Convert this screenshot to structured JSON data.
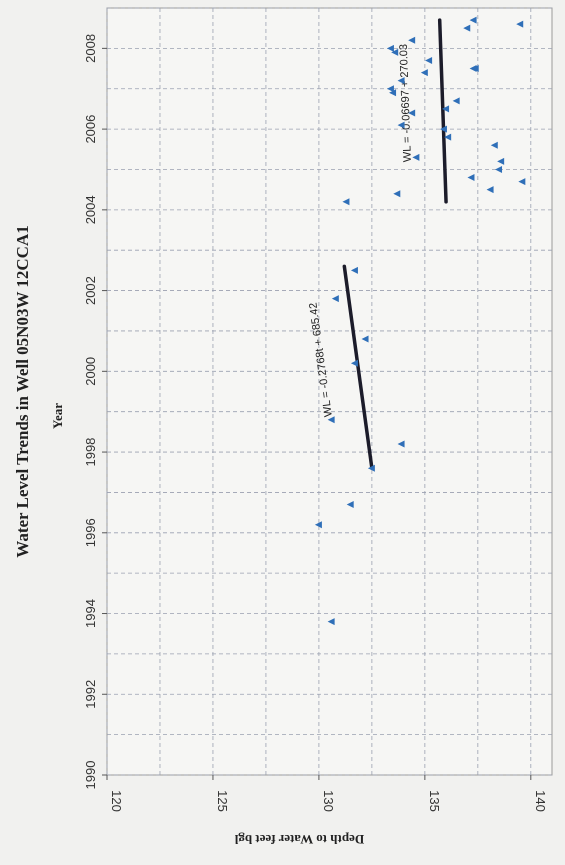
{
  "chart_data": {
    "type": "scatter",
    "title": "Water Level Trends in Well 05N03W 12CCA1",
    "xlabel": "Year",
    "ylabel": "Depth to Water feet bgl",
    "xlim": [
      1990,
      2009
    ],
    "ylim": [
      120,
      141
    ],
    "x_ticks": [
      "1990",
      "1992",
      "1994",
      "1996",
      "1998",
      "2000",
      "2002",
      "2004",
      "2006",
      "2008"
    ],
    "y_ticks": [
      "120",
      "125",
      "130",
      "135",
      "140"
    ],
    "grid": true,
    "colors": {
      "points": "#2f6fb8",
      "trendline": "#1c1c2a",
      "grid": "#9aa0b0"
    },
    "series": [
      {
        "values": [
          [
            1993.8,
            130.6
          ],
          [
            1996.2,
            130.0
          ],
          [
            1996.7,
            131.5
          ],
          [
            1997.6,
            132.5
          ],
          [
            1998.2,
            133.9
          ],
          [
            1998.8,
            130.6
          ],
          [
            2000.2,
            131.7
          ],
          [
            2000.8,
            132.2
          ],
          [
            2001.8,
            130.8
          ],
          [
            2002.5,
            131.7
          ],
          [
            2004.2,
            131.3
          ],
          [
            2004.4,
            133.7
          ],
          [
            2004.5,
            138.1
          ],
          [
            2004.7,
            139.6
          ],
          [
            2004.8,
            137.2
          ],
          [
            2005.0,
            138.5
          ],
          [
            2005.2,
            138.6
          ],
          [
            2005.3,
            134.6
          ],
          [
            2005.6,
            138.3
          ],
          [
            2005.8,
            136.1
          ],
          [
            2006.0,
            135.9
          ],
          [
            2006.1,
            133.9
          ],
          [
            2006.4,
            134.4
          ],
          [
            2006.5,
            136.0
          ],
          [
            2006.7,
            136.5
          ],
          [
            2006.9,
            133.5
          ],
          [
            2007.0,
            133.4
          ],
          [
            2007.2,
            133.9
          ],
          [
            2007.4,
            135.0
          ],
          [
            2007.5,
            137.3
          ],
          [
            2007.5,
            137.4
          ],
          [
            2007.7,
            135.2
          ],
          [
            2007.9,
            133.6
          ],
          [
            2008.0,
            133.4
          ],
          [
            2008.2,
            134.4
          ],
          [
            2008.5,
            137.0
          ],
          [
            2008.6,
            139.5
          ],
          [
            2008.7,
            137.3
          ]
        ]
      }
    ],
    "trendlines": [
      {
        "label": "WL = -0.2768t + 685.42",
        "x": [
          1997.6,
          2002.6
        ],
        "y": [
          132.5,
          131.2
        ]
      },
      {
        "label": "WL = -0.06697 + 270.03",
        "x": [
          2004.2,
          2008.7
        ],
        "y": [
          136.0,
          135.7
        ]
      }
    ]
  }
}
